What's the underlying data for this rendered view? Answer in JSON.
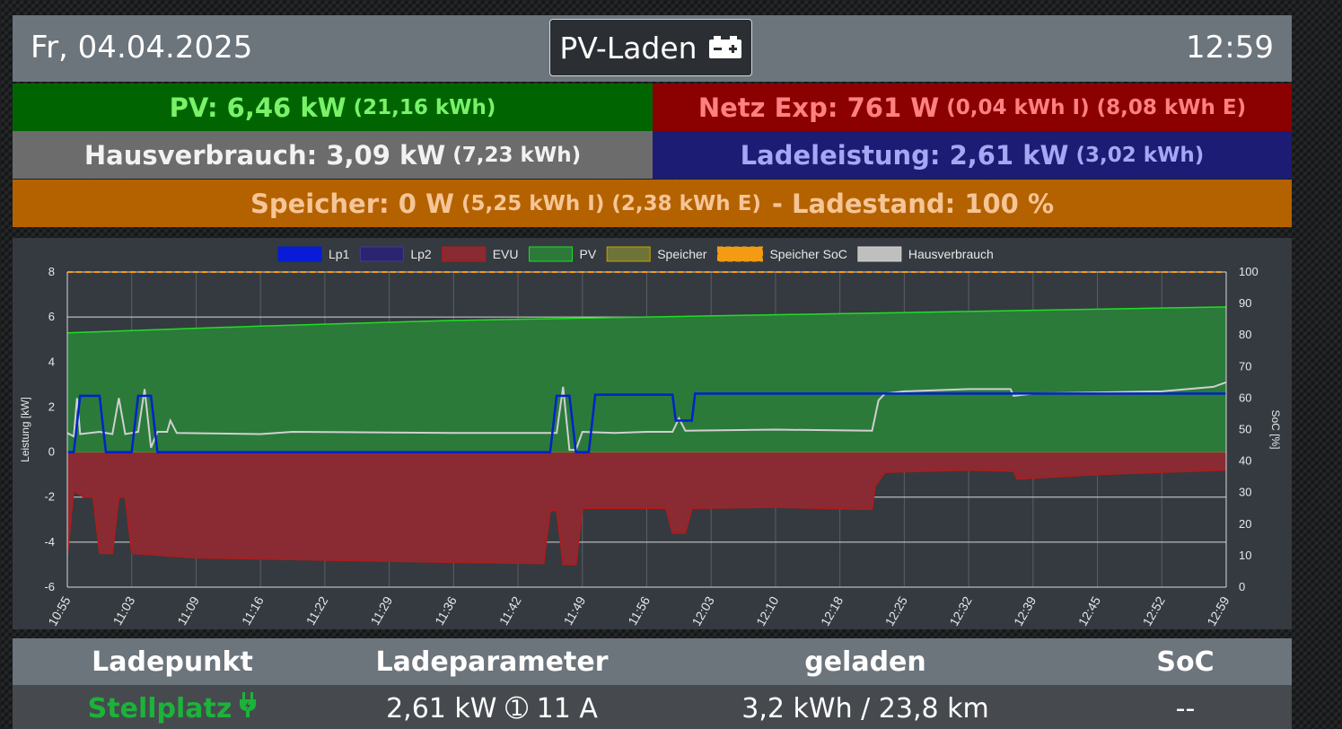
{
  "header": {
    "date": "Fr, 04.04.2025",
    "mode_label": "PV-Laden",
    "mode_icon": "battery-charging-icon",
    "time": "12:59"
  },
  "tiles": {
    "pv": {
      "main": "PV: 6,46 kW",
      "sub": "(21,16 kWh)",
      "bg": "#006500",
      "fg": "#79f26a"
    },
    "evu": {
      "main": "Netz Exp: 761 W",
      "sub1": "(0,04 kWh I)",
      "sub2": "(8,08 kWh E)",
      "bg": "#8b0000",
      "fg": "#ff8080"
    },
    "haus": {
      "main": "Hausverbrauch: 3,09 kW",
      "sub": "(7,23 kWh)",
      "bg": "#6c6c6c",
      "fg": "#f2f2f2"
    },
    "lade": {
      "main": "Ladeleistung: 2,61 kW",
      "sub": "(3,02 kWh)",
      "bg": "#1c1c74",
      "fg": "#a6a6f5"
    },
    "speicher": {
      "main": "Speicher: 0 W",
      "sub1": "(5,25 kWh I)",
      "sub2": "(2,38 kWh E)",
      "tail": "- Ladestand: 100 %",
      "bg": "#b46200",
      "fg": "#f6c596"
    }
  },
  "chart_data": {
    "type": "area",
    "legend_position": "top",
    "grid": true,
    "ylabel": "Leistung [kW]",
    "y2label": "SoC [%]",
    "ylim": [
      -6,
      8
    ],
    "y2lim": [
      0,
      100
    ],
    "yticks": [
      "8",
      "6",
      "4",
      "2",
      "0",
      "-2",
      "-4",
      "-6"
    ],
    "y2ticks": [
      "100",
      "90",
      "80",
      "70",
      "60",
      "50",
      "40",
      "30",
      "20",
      "10",
      "0"
    ],
    "x_labels": [
      "10:55",
      "11:03",
      "11:09",
      "11:16",
      "11:22",
      "11:29",
      "11:36",
      "11:42",
      "11:49",
      "11:56",
      "12:03",
      "12:10",
      "12:18",
      "12:25",
      "12:32",
      "12:39",
      "12:45",
      "12:52",
      "12:59"
    ],
    "series": [
      {
        "name": "Lp1",
        "color": "#0022cc",
        "fill": "#0a1bd8",
        "points": [
          [
            0,
            0
          ],
          [
            0.1,
            0
          ],
          [
            0.2,
            2.5
          ],
          [
            0.5,
            2.5
          ],
          [
            0.6,
            0
          ],
          [
            1.0,
            0
          ],
          [
            1.1,
            2.5
          ],
          [
            1.3,
            2.5
          ],
          [
            1.4,
            0
          ],
          [
            7.5,
            0
          ],
          [
            7.6,
            2.5
          ],
          [
            7.8,
            2.5
          ],
          [
            7.9,
            0
          ],
          [
            8.1,
            0
          ],
          [
            8.2,
            2.55
          ],
          [
            9.4,
            2.55
          ],
          [
            9.45,
            1.4
          ],
          [
            9.7,
            1.4
          ],
          [
            9.75,
            2.6
          ],
          [
            18,
            2.6
          ]
        ]
      },
      {
        "name": "Lp2",
        "color": "#3d3d90",
        "fill": "#2c2470",
        "points": []
      },
      {
        "name": "EVU",
        "color": "#b01c1c",
        "fill": "#8a2a32",
        "points": [
          [
            0,
            -4.6
          ],
          [
            0.1,
            -1.7
          ],
          [
            0.25,
            -2
          ],
          [
            0.4,
            -2
          ],
          [
            0.5,
            -4.5
          ],
          [
            0.7,
            -4.5
          ],
          [
            0.8,
            -2
          ],
          [
            0.9,
            -2
          ],
          [
            1.0,
            -4.5
          ],
          [
            2,
            -4.7
          ],
          [
            4,
            -4.8
          ],
          [
            6,
            -4.9
          ],
          [
            7.4,
            -4.95
          ],
          [
            7.5,
            -2.6
          ],
          [
            7.6,
            -2.6
          ],
          [
            7.7,
            -5.0
          ],
          [
            7.9,
            -5.0
          ],
          [
            8.0,
            -2.5
          ],
          [
            9.3,
            -2.5
          ],
          [
            9.4,
            -3.6
          ],
          [
            9.6,
            -3.6
          ],
          [
            9.7,
            -2.5
          ],
          [
            11,
            -2.45
          ],
          [
            12.5,
            -2.55
          ],
          [
            12.55,
            -1.5
          ],
          [
            12.7,
            -0.9
          ],
          [
            14,
            -0.8
          ],
          [
            14.7,
            -0.85
          ],
          [
            14.75,
            -1.2
          ],
          [
            16,
            -1.0
          ],
          [
            18,
            -0.8
          ]
        ]
      },
      {
        "name": "PV",
        "color": "#22dd22",
        "fill": "#2b7a3a",
        "points": [
          [
            0,
            5.3
          ],
          [
            3,
            5.6
          ],
          [
            6,
            5.85
          ],
          [
            9,
            6.0
          ],
          [
            12,
            6.15
          ],
          [
            15,
            6.3
          ],
          [
            18,
            6.45
          ]
        ]
      },
      {
        "name": "Speicher",
        "color": "#c8a000",
        "fill": "#6d7438",
        "points": [
          [
            0,
            0
          ],
          [
            18,
            0
          ]
        ]
      },
      {
        "name": "Speicher SoC",
        "color": "#f39c12",
        "fill": "#f39c12",
        "dashed": true,
        "axis": "y2",
        "points": [
          [
            0,
            100
          ],
          [
            18,
            100
          ]
        ]
      },
      {
        "name": "Hausverbrauch",
        "color": "#d0d0d0",
        "fill": "#bfbfbf",
        "points": [
          [
            0,
            0.85
          ],
          [
            0.1,
            0.7
          ],
          [
            0.15,
            2.4
          ],
          [
            0.2,
            0.8
          ],
          [
            0.5,
            0.9
          ],
          [
            0.7,
            0.8
          ],
          [
            0.8,
            2.4
          ],
          [
            0.9,
            0.8
          ],
          [
            1.1,
            0.9
          ],
          [
            1.2,
            2.8
          ],
          [
            1.3,
            0.2
          ],
          [
            1.4,
            0.9
          ],
          [
            1.55,
            0.9
          ],
          [
            1.6,
            1.4
          ],
          [
            1.7,
            0.85
          ],
          [
            3,
            0.8
          ],
          [
            3.5,
            0.9
          ],
          [
            6,
            0.85
          ],
          [
            7.6,
            0.85
          ],
          [
            7.7,
            2.9
          ],
          [
            7.8,
            0.1
          ],
          [
            7.9,
            0.1
          ],
          [
            8.0,
            0.9
          ],
          [
            8.5,
            0.85
          ],
          [
            9.0,
            0.9
          ],
          [
            9.4,
            0.9
          ],
          [
            9.5,
            1.5
          ],
          [
            9.6,
            0.95
          ],
          [
            11,
            1.0
          ],
          [
            12.5,
            0.95
          ],
          [
            12.6,
            2.3
          ],
          [
            12.7,
            2.6
          ],
          [
            13,
            2.7
          ],
          [
            14,
            2.8
          ],
          [
            14.65,
            2.8
          ],
          [
            14.7,
            2.5
          ],
          [
            15,
            2.6
          ],
          [
            16,
            2.65
          ],
          [
            17,
            2.7
          ],
          [
            17.8,
            2.9
          ],
          [
            18,
            3.1
          ]
        ]
      }
    ]
  },
  "lp_table": {
    "headers": [
      "Ladepunkt",
      "Ladeparameter",
      "geladen",
      "SoC"
    ],
    "rows": [
      {
        "name": "Stellplatz",
        "params": "2,61 kW ➀ 11 A",
        "charged": "3,2 kWh / 23,8 km",
        "soc": "--"
      }
    ]
  }
}
